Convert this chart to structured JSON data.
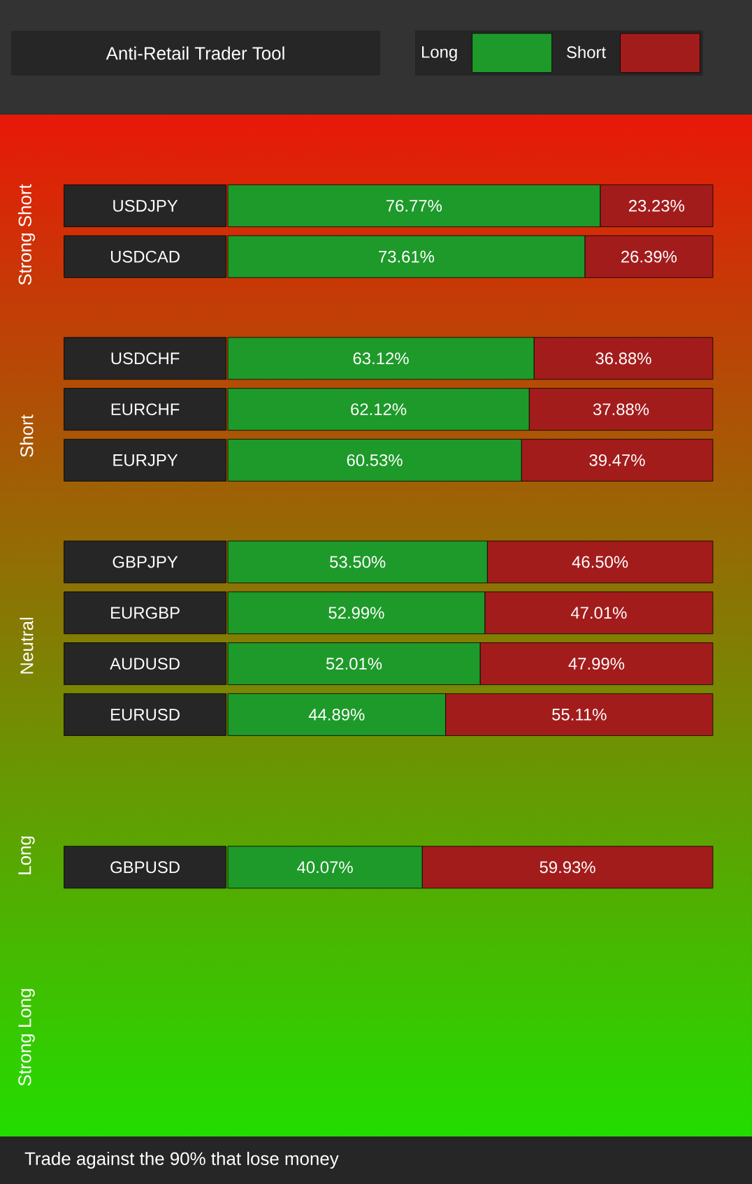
{
  "chart_data": {
    "type": "bar",
    "orientation": "horizontal",
    "stacked": true,
    "title": "Anti-Retail Trader Tool",
    "categories": [
      "USDJPY",
      "USDCAD",
      null,
      "USDCHF",
      "EURCHF",
      "EURJPY",
      null,
      "GBPJPY",
      "EURGBP",
      "AUDUSD",
      "EURUSD",
      null,
      null,
      "GBPUSD",
      null,
      null,
      null,
      null
    ],
    "series": [
      {
        "name": "Long",
        "color": "#1e9a2a",
        "values": [
          76.77,
          73.61,
          null,
          63.12,
          62.12,
          60.53,
          null,
          53.5,
          52.99,
          52.01,
          44.89,
          null,
          null,
          40.07,
          null,
          null,
          null,
          null
        ],
        "value_labels": [
          "76.77%",
          "73.61%",
          null,
          "63.12%",
          "62.12%",
          "60.53%",
          null,
          "53.50%",
          "52.99%",
          "52.01%",
          "44.89%",
          null,
          null,
          "40.07%",
          null,
          null,
          null,
          null
        ]
      },
      {
        "name": "Short",
        "color": "#a31c1c",
        "values": [
          23.23,
          26.39,
          null,
          36.88,
          37.88,
          39.47,
          null,
          46.5,
          47.01,
          47.99,
          55.11,
          null,
          null,
          59.93,
          null,
          null,
          null,
          null
        ],
        "value_labels": [
          "23.23%",
          "26.39%",
          null,
          "36.88%",
          "37.88%",
          "39.47%",
          null,
          "46.50%",
          "47.01%",
          "47.99%",
          "55.11%",
          null,
          null,
          "59.93%",
          null,
          null,
          null,
          null
        ]
      }
    ],
    "xlim": [
      0,
      100
    ],
    "tick_labels": "y",
    "legend": "top",
    "annotations": [
      "Strong Short",
      "Short",
      "Neutral",
      "Long",
      "Strong Long",
      "Trade against the 90% that lose money"
    ]
  }
}
